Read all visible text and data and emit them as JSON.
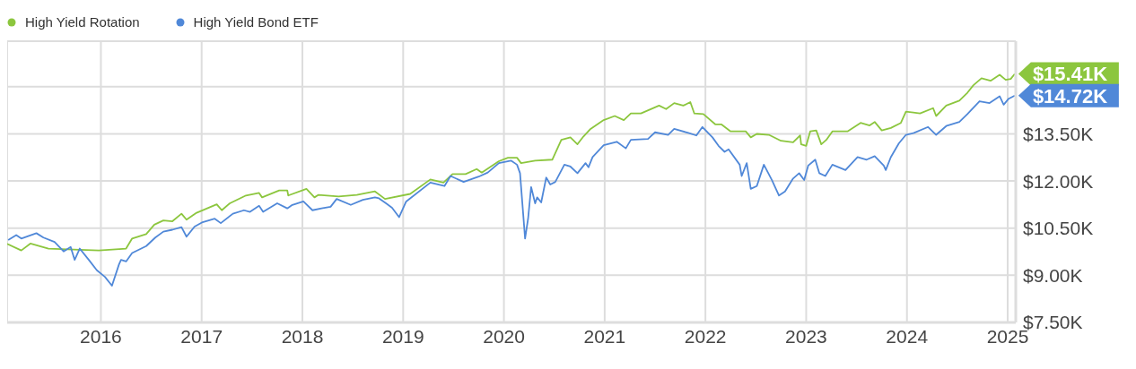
{
  "chart_data": {
    "type": "line",
    "legend": "top left",
    "grid": true,
    "marker": "none",
    "line_style": "solid",
    "xlim": [
      2015.07,
      2025.08
    ],
    "xticks": [
      2016,
      2017,
      2018,
      2019,
      2020,
      2021,
      2022,
      2023,
      2024,
      2025
    ],
    "ylim": [
      7500,
      16450
    ],
    "yticks": [
      {
        "value": 7500,
        "label": "$7.50K"
      },
      {
        "value": 9000,
        "label": "$9.00K"
      },
      {
        "value": 10500,
        "label": "$10.50K"
      },
      {
        "value": 12000,
        "label": "$12.00K"
      },
      {
        "value": 13500,
        "label": "$13.50K"
      },
      {
        "value": 15000,
        "label": null
      }
    ],
    "series": [
      {
        "name": "High Yield Rotation",
        "color": "#8cc63e",
        "x": [
          2015.07,
          2015.21,
          2015.3,
          2015.48,
          2015.98,
          2016.25,
          2016.31,
          2016.45,
          2016.53,
          2016.62,
          2016.71,
          2016.8,
          2016.85,
          2016.95,
          2017.15,
          2017.2,
          2017.28,
          2017.44,
          2017.57,
          2017.6,
          2017.77,
          2017.85,
          2017.86,
          2018.04,
          2018.12,
          2018.16,
          2018.36,
          2018.54,
          2018.72,
          2018.82,
          2019.07,
          2019.27,
          2019.4,
          2019.49,
          2019.62,
          2019.73,
          2019.78,
          2019.95,
          2020.04,
          2020.13,
          2020.17,
          2020.31,
          2020.48,
          2020.57,
          2020.66,
          2020.73,
          2020.79,
          2020.86,
          2020.99,
          2021.1,
          2021.19,
          2021.26,
          2021.36,
          2021.54,
          2021.61,
          2021.69,
          2021.78,
          2021.85,
          2021.89,
          2021.98,
          2022.1,
          2022.16,
          2022.25,
          2022.4,
          2022.45,
          2022.51,
          2022.63,
          2022.75,
          2022.87,
          2022.94,
          2022.95,
          2023.0,
          2023.04,
          2023.1,
          2023.15,
          2023.2,
          2023.26,
          2023.41,
          2023.54,
          2023.63,
          2023.68,
          2023.75,
          2023.84,
          2023.94,
          2023.99,
          2024.13,
          2024.26,
          2024.29,
          2024.39,
          2024.52,
          2024.6,
          2024.66,
          2024.74,
          2024.83,
          2024.92,
          2024.98,
          2025.03,
          2025.07
        ],
        "values": [
          10000,
          9790,
          10010,
          9850,
          9790,
          9850,
          10170,
          10310,
          10610,
          10745,
          10720,
          10960,
          10770,
          10990,
          11260,
          11070,
          11290,
          11540,
          11620,
          11480,
          11700,
          11700,
          11540,
          11750,
          11480,
          11560,
          11510,
          11560,
          11670,
          11430,
          11590,
          12050,
          11950,
          12220,
          12220,
          12380,
          12270,
          12630,
          12740,
          12740,
          12570,
          12650,
          12680,
          13310,
          13390,
          13170,
          13420,
          13660,
          13940,
          14070,
          13940,
          14150,
          14150,
          14400,
          14290,
          14480,
          14400,
          14510,
          14150,
          14130,
          13800,
          13800,
          13580,
          13580,
          13390,
          13500,
          13470,
          13280,
          13230,
          13450,
          13170,
          13120,
          13580,
          13610,
          13170,
          13310,
          13580,
          13580,
          13850,
          13770,
          13880,
          13610,
          13690,
          13850,
          14210,
          14150,
          14320,
          14070,
          14400,
          14560,
          14810,
          15050,
          15270,
          15190,
          15380,
          15220,
          15250,
          15410
        ],
        "value_labels": [
          null,
          null,
          null,
          null,
          null,
          null,
          null,
          null,
          null,
          null,
          null,
          null,
          null,
          null,
          null,
          null,
          null,
          null,
          null,
          null,
          null,
          null,
          null,
          null,
          null,
          null,
          null,
          null,
          null,
          null,
          null,
          null,
          null,
          null,
          null,
          null,
          null,
          null,
          null,
          null,
          null,
          null,
          null,
          null,
          null,
          null,
          null,
          null,
          null,
          null,
          null,
          null,
          null,
          null,
          null,
          null,
          null,
          null,
          null,
          null,
          null,
          null,
          null,
          null,
          null,
          null,
          null,
          null,
          null,
          null,
          null,
          null,
          null,
          null,
          null,
          null,
          null,
          null,
          null,
          null,
          null,
          null,
          null,
          null,
          null,
          null,
          null,
          null,
          null,
          null,
          null,
          null,
          null,
          null,
          null,
          null,
          null,
          "$15.41K"
        ]
      },
      {
        "name": "High Yield Bond ETF",
        "color": "#5088d8",
        "x": [
          2015.08,
          2015.16,
          2015.21,
          2015.36,
          2015.43,
          2015.54,
          2015.63,
          2015.7,
          2015.74,
          2015.79,
          2015.88,
          2015.96,
          2016.04,
          2016.11,
          2016.18,
          2016.2,
          2016.25,
          2016.31,
          2016.45,
          2016.54,
          2016.62,
          2016.71,
          2016.8,
          2016.85,
          2016.93,
          2017.01,
          2017.13,
          2017.19,
          2017.31,
          2017.42,
          2017.48,
          2017.57,
          2017.61,
          2017.75,
          2017.85,
          2017.9,
          2018.01,
          2018.1,
          2018.19,
          2018.28,
          2018.34,
          2018.48,
          2018.6,
          2018.72,
          2018.76,
          2018.83,
          2018.89,
          2018.96,
          2019.03,
          2019.27,
          2019.41,
          2019.47,
          2019.6,
          2019.75,
          2019.84,
          2019.95,
          2020.07,
          2020.13,
          2020.16,
          2020.21,
          2020.24,
          2020.27,
          2020.31,
          2020.33,
          2020.37,
          2020.42,
          2020.46,
          2020.51,
          2020.6,
          2020.66,
          2020.73,
          2020.81,
          2020.84,
          2020.88,
          2020.99,
          2021.12,
          2021.21,
          2021.26,
          2021.43,
          2021.5,
          2021.63,
          2021.69,
          2021.83,
          2021.91,
          2021.97,
          2022.07,
          2022.13,
          2022.19,
          2022.23,
          2022.34,
          2022.36,
          2022.41,
          2022.45,
          2022.51,
          2022.58,
          2022.66,
          2022.73,
          2022.79,
          2022.87,
          2022.93,
          2022.98,
          2023.02,
          2023.09,
          2023.13,
          2023.19,
          2023.26,
          2023.39,
          2023.51,
          2023.6,
          2023.68,
          2023.77,
          2023.79,
          2023.84,
          2023.92,
          2023.99,
          2024.07,
          2024.21,
          2024.29,
          2024.39,
          2024.52,
          2024.6,
          2024.72,
          2024.82,
          2024.92,
          2024.96,
          2025.01,
          2025.07
        ],
        "values": [
          10120,
          10280,
          10170,
          10340,
          10200,
          10060,
          9760,
          9900,
          9490,
          9850,
          9490,
          9160,
          8950,
          8670,
          9350,
          9490,
          9440,
          9710,
          9930,
          10200,
          10390,
          10450,
          10530,
          10230,
          10550,
          10690,
          10800,
          10660,
          10960,
          11070,
          11020,
          11210,
          11020,
          11290,
          11130,
          11240,
          11350,
          11070,
          11130,
          11180,
          11430,
          11240,
          11400,
          11480,
          11450,
          11290,
          11150,
          10850,
          11350,
          11950,
          11840,
          12160,
          11970,
          12140,
          12270,
          12570,
          12650,
          12520,
          12250,
          10170,
          10800,
          11810,
          11290,
          11480,
          11320,
          12110,
          11890,
          11970,
          12520,
          12460,
          12250,
          12570,
          12440,
          12760,
          13140,
          13250,
          13040,
          13310,
          13340,
          13550,
          13470,
          13660,
          13530,
          13450,
          13720,
          13390,
          13120,
          12930,
          13010,
          12520,
          12160,
          12570,
          11750,
          11840,
          12520,
          12030,
          11540,
          11670,
          12080,
          12250,
          12030,
          12490,
          12680,
          12250,
          12160,
          12520,
          12350,
          12760,
          12680,
          12790,
          12490,
          12350,
          12760,
          13200,
          13470,
          13530,
          13720,
          13470,
          13750,
          13880,
          14130,
          14540,
          14480,
          14700,
          14430,
          14620,
          14720
        ],
        "value_labels": [
          null,
          null,
          null,
          null,
          null,
          null,
          null,
          null,
          null,
          null,
          null,
          null,
          null,
          null,
          null,
          null,
          null,
          null,
          null,
          null,
          null,
          null,
          null,
          null,
          null,
          null,
          null,
          null,
          null,
          null,
          null,
          null,
          null,
          null,
          null,
          null,
          null,
          null,
          null,
          null,
          null,
          null,
          null,
          null,
          null,
          null,
          null,
          null,
          null,
          null,
          null,
          null,
          null,
          null,
          null,
          null,
          null,
          null,
          null,
          null,
          null,
          null,
          null,
          null,
          null,
          null,
          null,
          null,
          null,
          null,
          null,
          null,
          null,
          null,
          null,
          null,
          null,
          null,
          null,
          null,
          null,
          null,
          null,
          null,
          null,
          null,
          null,
          null,
          null,
          null,
          null,
          null,
          null,
          null,
          null,
          null,
          null,
          null,
          null,
          null,
          null,
          null,
          null,
          null,
          null,
          null,
          null,
          null,
          null,
          null,
          null,
          null,
          null,
          null,
          null,
          null,
          null,
          null,
          null,
          null,
          null,
          null,
          null,
          null,
          null,
          null,
          "$14.72K"
        ]
      }
    ]
  }
}
